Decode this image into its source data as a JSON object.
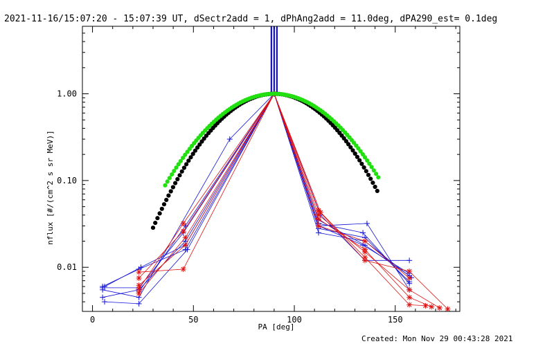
{
  "chart_data": {
    "type": "scatter",
    "title": "2021-11-16/15:07:20 - 15:07:39 UT, dSectr2add = 1, dPhAng2add = 11.0deg, dPA290_est=  0.1deg",
    "xlabel": "PA [deg]",
    "ylabel": "nflux [#/(cm^2 s sr MeV)]",
    "xlim": [
      -5,
      182
    ],
    "ylim": [
      0.0031,
      6.0
    ],
    "yscale": "log",
    "x_ticks": [
      0,
      50,
      100,
      150
    ],
    "x_tick_labels": [
      "0",
      "50",
      "100",
      "150"
    ],
    "y_ticks": [
      0.01,
      0.1,
      1.0
    ],
    "y_tick_labels": [
      "0.01",
      "0.10",
      "1.00"
    ],
    "colors": {
      "blue": "#1010d8",
      "red": "#e01010",
      "black": "#000000",
      "green": "#22e010"
    },
    "vertical_marker": {
      "x": 90,
      "colors": [
        "#1010d8",
        "#1010d8",
        "#1010d8"
      ]
    },
    "fit_curves": [
      {
        "name": "fit-black",
        "color": "#000000",
        "width_deg": 22.5,
        "x_start": 30,
        "x_end": 142
      },
      {
        "name": "fit-green",
        "color": "#22e010",
        "width_deg": 24.5,
        "x_start": 36,
        "x_end": 142
      }
    ],
    "series": [
      {
        "color": "#1010d8",
        "x": [
          5,
          23,
          46,
          90,
          112,
          135,
          157
        ],
        "y": [
          0.006,
          0.0095,
          0.016,
          1.0,
          0.035,
          0.018,
          0.008
        ]
      },
      {
        "color": "#1010d8",
        "x": [
          5,
          23,
          46,
          90,
          112,
          135,
          157
        ],
        "y": [
          0.0045,
          0.0055,
          0.02,
          1.0,
          0.028,
          0.022,
          0.0068
        ]
      },
      {
        "color": "#1010d8",
        "x": [
          6,
          23,
          47,
          90,
          112,
          136,
          157
        ],
        "y": [
          0.004,
          0.0038,
          0.016,
          1.0,
          0.03,
          0.032,
          0.0055
        ]
      },
      {
        "color": "#1010d8",
        "x": [
          5,
          23,
          45,
          90,
          113,
          135,
          157
        ],
        "y": [
          0.0058,
          0.0058,
          0.025,
          1.0,
          0.04,
          0.012,
          0.012
        ]
      },
      {
        "color": "#1010d8",
        "x": [
          6,
          24,
          46,
          90,
          112,
          135,
          158
        ],
        "y": [
          0.006,
          0.01,
          0.018,
          1.0,
          0.025,
          0.02,
          0.0076
        ]
      },
      {
        "color": "#1010d8",
        "x": [
          5,
          23,
          68,
          90,
          112,
          134,
          157
        ],
        "y": [
          0.0055,
          0.0045,
          0.3,
          1.0,
          0.03,
          0.018,
          0.0085
        ]
      },
      {
        "color": "#1010d8",
        "x": [
          23,
          46,
          90,
          112,
          134,
          157
        ],
        "y": [
          0.0052,
          0.03,
          1.0,
          0.032,
          0.025,
          0.0065
        ]
      },
      {
        "color": "#e01010",
        "x": [
          23,
          45,
          90,
          112,
          135,
          157,
          176
        ],
        "y": [
          0.0088,
          0.0095,
          1.0,
          0.045,
          0.012,
          0.009,
          0.0033
        ]
      },
      {
        "color": "#e01010",
        "x": [
          23,
          45,
          90,
          112,
          135,
          157,
          172
        ],
        "y": [
          0.0056,
          0.032,
          1.0,
          0.04,
          0.015,
          0.0055,
          0.0034
        ]
      },
      {
        "color": "#e01010",
        "x": [
          23,
          46,
          90,
          112,
          135,
          157,
          168
        ],
        "y": [
          0.005,
          0.022,
          1.0,
          0.036,
          0.016,
          0.0045,
          0.0035
        ]
      },
      {
        "color": "#e01010",
        "x": [
          23,
          45,
          90,
          113,
          135,
          157,
          165
        ],
        "y": [
          0.0075,
          0.026,
          1.0,
          0.043,
          0.013,
          0.0037,
          0.0036
        ]
      },
      {
        "color": "#e01010",
        "x": [
          23,
          46,
          90,
          112,
          135,
          157
        ],
        "y": [
          0.0062,
          0.018,
          1.0,
          0.03,
          0.02,
          0.0075
        ]
      }
    ]
  },
  "footer": {
    "created": "Created: Mon Nov 29 00:43:28 2021"
  }
}
